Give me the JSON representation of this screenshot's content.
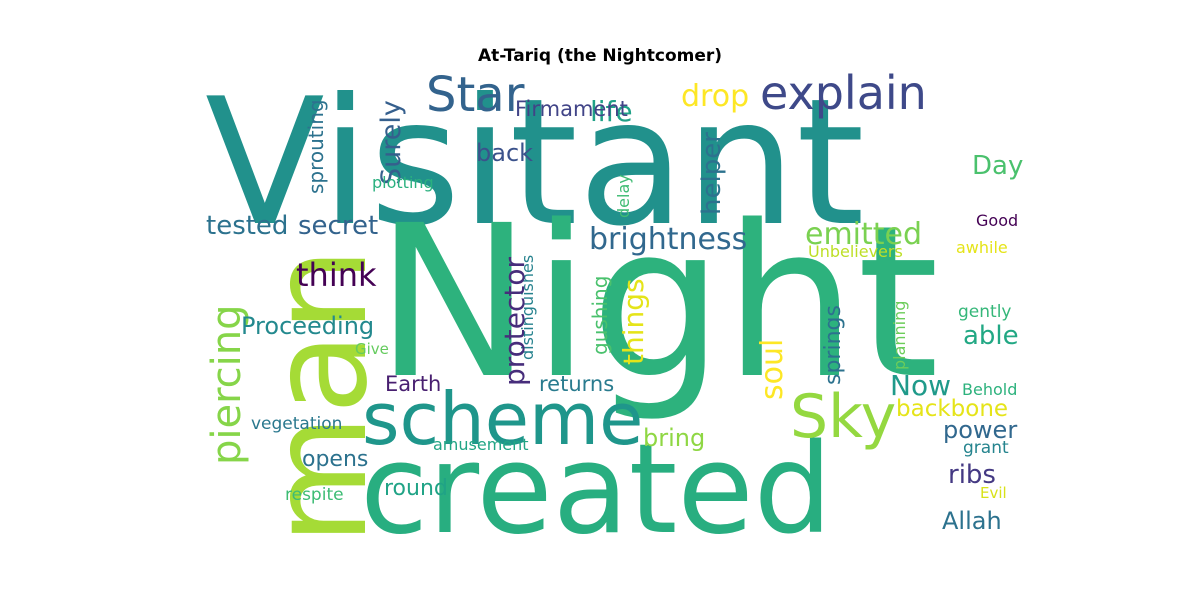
{
  "title": "At-Tariq (the Nightcomer)",
  "words": [
    {
      "text": "Visitant",
      "color": "#21918c"
    },
    {
      "text": "Night",
      "color": "#2db27d"
    },
    {
      "text": "man",
      "color": "#a5db36"
    },
    {
      "text": "created",
      "color": "#28ae80"
    },
    {
      "text": "scheme",
      "color": "#1f968b"
    },
    {
      "text": "Star",
      "color": "#33638d"
    },
    {
      "text": "explain",
      "color": "#3e4989"
    },
    {
      "text": "life",
      "color": "#1fa187"
    },
    {
      "text": "drop",
      "color": "#fde725"
    },
    {
      "text": "Firmament",
      "color": "#414487"
    },
    {
      "text": "sprouting",
      "color": "#2c728e"
    },
    {
      "text": "Surely",
      "color": "#355f8d"
    },
    {
      "text": "back",
      "color": "#3b528b"
    },
    {
      "text": "plotting",
      "color": "#2ab07f"
    },
    {
      "text": "helper",
      "color": "#2c728e"
    },
    {
      "text": "delay",
      "color": "#3fbc73"
    },
    {
      "text": "Day",
      "color": "#4ac16d"
    },
    {
      "text": "tested",
      "color": "#2c728e"
    },
    {
      "text": "secret",
      "color": "#33638d"
    },
    {
      "text": "brightness",
      "color": "#31688e"
    },
    {
      "text": "emitted",
      "color": "#7ad151"
    },
    {
      "text": "Good",
      "color": "#440154"
    },
    {
      "text": "awhile",
      "color": "#e5e419"
    },
    {
      "text": "Unbelievers",
      "color": "#bddf26"
    },
    {
      "text": "piercing",
      "color": "#86d549"
    },
    {
      "text": "think",
      "color": "#440154"
    },
    {
      "text": "distinguishes",
      "color": "#26828e"
    },
    {
      "text": "protector",
      "color": "#472d7b"
    },
    {
      "text": "gushing",
      "color": "#4ac16d"
    },
    {
      "text": "things",
      "color": "#e5e419"
    },
    {
      "text": "Proceeding",
      "color": "#23898e"
    },
    {
      "text": "Give",
      "color": "#65cb5e"
    },
    {
      "text": "soul",
      "color": "#fde725"
    },
    {
      "text": "springs",
      "color": "#2c728e"
    },
    {
      "text": "planning",
      "color": "#6ccd5a"
    },
    {
      "text": "gently",
      "color": "#35b779"
    },
    {
      "text": "able",
      "color": "#22a884"
    },
    {
      "text": "Earth",
      "color": "#481f70"
    },
    {
      "text": "returns",
      "color": "#297b8e"
    },
    {
      "text": "Sky",
      "color": "#94d840"
    },
    {
      "text": "Now",
      "color": "#1f9a8a"
    },
    {
      "text": "Behold",
      "color": "#2db27d"
    },
    {
      "text": "backbone",
      "color": "#e5e419"
    },
    {
      "text": "vegetation",
      "color": "#2a788e"
    },
    {
      "text": "amusement",
      "color": "#21a585"
    },
    {
      "text": "bring",
      "color": "#8fd744"
    },
    {
      "text": "power",
      "color": "#31688e"
    },
    {
      "text": "grant",
      "color": "#25848e"
    },
    {
      "text": "opens",
      "color": "#2c728e"
    },
    {
      "text": "ribs",
      "color": "#443983"
    },
    {
      "text": "Evil",
      "color": "#d8e219"
    },
    {
      "text": "respite",
      "color": "#3dbc74"
    },
    {
      "text": "round",
      "color": "#20a386"
    },
    {
      "text": "Allah",
      "color": "#2c728e"
    }
  ]
}
